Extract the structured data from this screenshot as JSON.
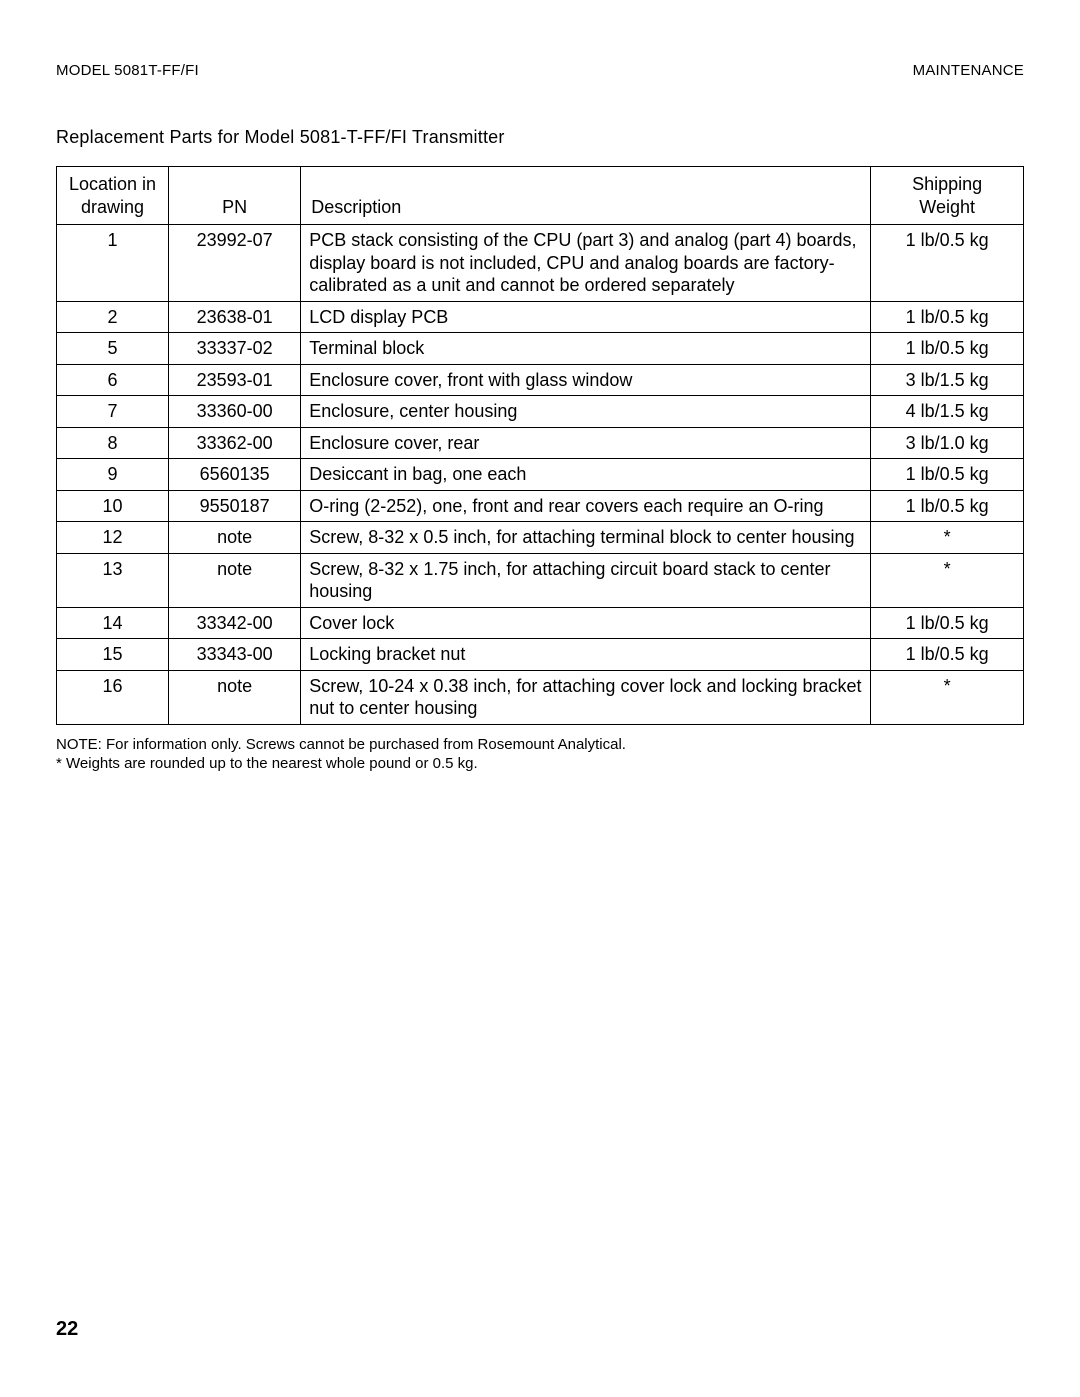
{
  "header": {
    "left": "MODEL 5081T-FF/FI",
    "right": "MAINTENANCE"
  },
  "title": "Replacement Parts for Model 5081-T-FF/FI Transmitter",
  "table": {
    "columns": {
      "loc_line1": "Location in",
      "loc_line2": "drawing",
      "pn": "PN",
      "desc": "Description",
      "wt_line1": "Shipping",
      "wt_line2": "Weight"
    },
    "rows": [
      {
        "loc": "1",
        "pn": "23992-07",
        "desc": "PCB stack consisting of the CPU (part 3) and analog (part 4) boards, display board is not included, CPU and analog boards are factory-calibrated as a unit and cannot be ordered separately",
        "wt": "1 lb/0.5 kg"
      },
      {
        "loc": "2",
        "pn": "23638-01",
        "desc": "LCD display PCB",
        "wt": "1 lb/0.5 kg"
      },
      {
        "loc": "5",
        "pn": "33337-02",
        "desc": "Terminal block",
        "wt": "1 lb/0.5 kg"
      },
      {
        "loc": "6",
        "pn": "23593-01",
        "desc": "Enclosure cover, front with glass window",
        "wt": "3 lb/1.5 kg"
      },
      {
        "loc": "7",
        "pn": "33360-00",
        "desc": "Enclosure, center housing",
        "wt": "4 lb/1.5 kg"
      },
      {
        "loc": "8",
        "pn": "33362-00",
        "desc": "Enclosure cover, rear",
        "wt": "3 lb/1.0 kg"
      },
      {
        "loc": "9",
        "pn": "6560135",
        "desc": "Desiccant in bag, one each",
        "wt": "1 lb/0.5 kg"
      },
      {
        "loc": "10",
        "pn": "9550187",
        "desc": "O-ring (2-252), one, front and rear covers each require an O-ring",
        "wt": "1 lb/0.5 kg"
      },
      {
        "loc": "12",
        "pn": "note",
        "desc": "Screw, 8-32 x 0.5 inch, for attaching terminal block to center housing",
        "wt": "*"
      },
      {
        "loc": "13",
        "pn": "note",
        "desc": "Screw, 8-32 x 1.75 inch, for attaching circuit board stack to center housing",
        "wt": "*"
      },
      {
        "loc": "14",
        "pn": "33342-00",
        "desc": "Cover lock",
        "wt": "1 lb/0.5 kg"
      },
      {
        "loc": "15",
        "pn": "33343-00",
        "desc": "Locking bracket nut",
        "wt": "1 lb/0.5 kg"
      },
      {
        "loc": "16",
        "pn": "note",
        "desc": "Screw, 10-24 x 0.38 inch, for attaching cover lock and locking bracket nut to center housing",
        "wt": "*"
      }
    ]
  },
  "footnotes": {
    "line1": "NOTE:  For information only. Screws cannot be purchased from Rosemount Analytical.",
    "line2": "* Weights are rounded up to the nearest whole pound or 0.5 kg."
  },
  "page_number": "22"
}
